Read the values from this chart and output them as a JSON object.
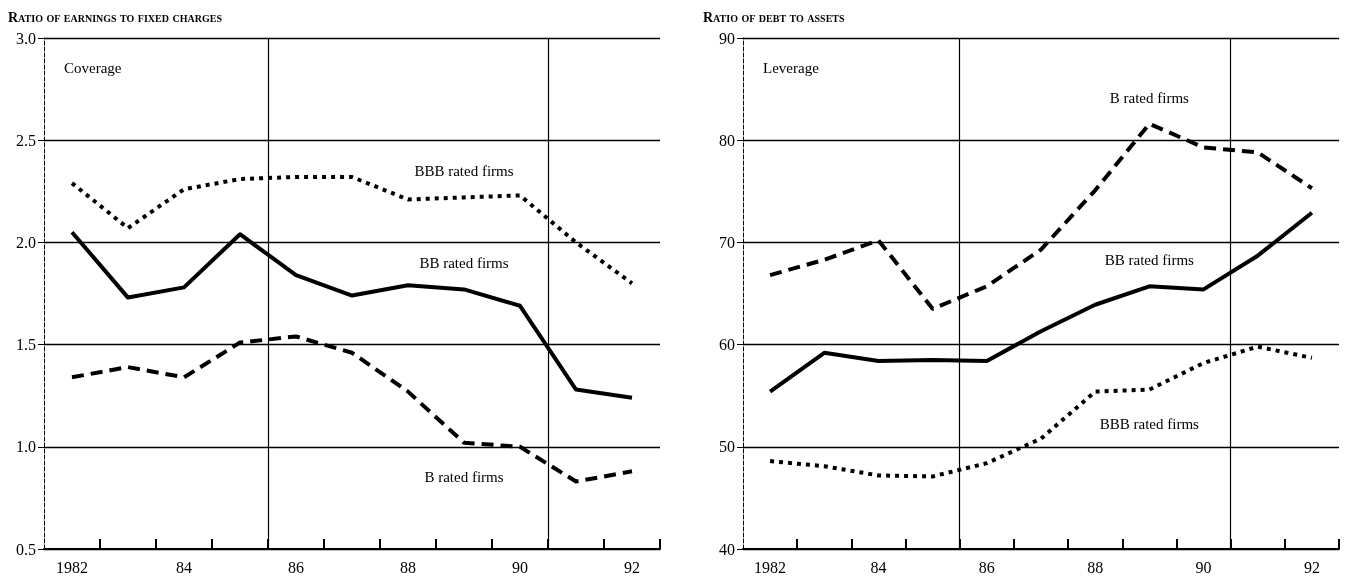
{
  "chart_data": [
    {
      "type": "line",
      "title": "Ratio of earnings to fixed charges",
      "x": [
        1982,
        1983,
        1984,
        1985,
        1986,
        1987,
        1988,
        1989,
        1990,
        1991,
        1992
      ],
      "series": [
        {
          "name": "BBB rated firms",
          "color": "#000000",
          "line_style": "dotted",
          "values": [
            2.29,
            2.07,
            2.26,
            2.31,
            2.32,
            2.32,
            2.21,
            2.22,
            2.23,
            2.0,
            1.8
          ]
        },
        {
          "name": "BB rated firms",
          "color": "#000000",
          "line_style": "solid",
          "values": [
            2.05,
            1.73,
            1.78,
            2.04,
            1.84,
            1.74,
            1.79,
            1.77,
            1.69,
            1.28,
            1.24
          ]
        },
        {
          "name": "B rated firms",
          "color": "#000000",
          "line_style": "dashed",
          "values": [
            1.34,
            1.39,
            1.34,
            1.51,
            1.54,
            1.46,
            1.27,
            1.02,
            1.0,
            0.83,
            0.88
          ]
        }
      ],
      "xlim": [
        1981.5,
        1992.5
      ],
      "xticks": [
        1982,
        {
          "value": 1982.5,
          "label": null
        },
        {
          "value": 1983.5,
          "label": null
        },
        {
          "value": 1984,
          "label": "84"
        },
        {
          "value": 1984.5,
          "label": null
        },
        {
          "value": 1985.5,
          "label": null
        },
        {
          "value": 1986,
          "label": "86"
        },
        {
          "value": 1986.5,
          "label": null
        },
        {
          "value": 1987.5,
          "label": null
        },
        {
          "value": 1988,
          "label": "88"
        },
        {
          "value": 1988.5,
          "label": null
        },
        {
          "value": 1989.5,
          "label": null
        },
        {
          "value": 1990,
          "label": "90"
        },
        {
          "value": 1990.5,
          "label": null
        },
        {
          "value": 1991.5,
          "label": null
        },
        {
          "value": 1992,
          "label": "92"
        },
        {
          "value": 1992.5,
          "label": null
        }
      ],
      "ylim": [
        0.5,
        3.0
      ],
      "yticks": [
        {
          "value": 0.5,
          "label": "0.5"
        },
        {
          "value": 1.0,
          "label": "1.0"
        },
        {
          "value": 1.5,
          "label": "1.5"
        },
        {
          "value": 2.0,
          "label": "2.0"
        },
        {
          "value": 2.5,
          "label": "2.5"
        },
        {
          "value": 3.0,
          "label": "3.0"
        }
      ],
      "grid": "y",
      "marker": "none",
      "ref_lines": [
        {
          "axis": "x",
          "value": 1985.5,
          "color": "#000000"
        },
        {
          "axis": "x",
          "value": 1990.5,
          "color": "#000000"
        }
      ],
      "annotations": [
        "Coverage"
      ]
    },
    {
      "type": "line",
      "title": "Ratio of debt to assets",
      "x": [
        1982,
        1983,
        1984,
        1985,
        1986,
        1987,
        1988,
        1989,
        1990,
        1991,
        1992
      ],
      "series": [
        {
          "name": "B rated firms",
          "color": "#000000",
          "line_style": "dashed",
          "values": [
            66.8,
            68.3,
            70.2,
            63.5,
            65.7,
            69.3,
            75.1,
            81.6,
            79.3,
            78.8,
            75.3
          ]
        },
        {
          "name": "BB rated firms",
          "color": "#000000",
          "line_style": "solid",
          "values": [
            55.4,
            59.2,
            58.4,
            58.5,
            58.4,
            61.3,
            63.9,
            65.7,
            65.4,
            68.7,
            72.9
          ]
        },
        {
          "name": "BBB rated firms",
          "color": "#000000",
          "line_style": "dotted",
          "values": [
            48.6,
            48.1,
            47.2,
            47.1,
            48.4,
            50.8,
            55.4,
            55.6,
            58.2,
            59.8,
            58.7
          ]
        }
      ],
      "xlim": [
        1981.5,
        1992.5
      ],
      "xticks": [
        1982,
        {
          "value": 1982.5,
          "label": null
        },
        {
          "value": 1983.5,
          "label": null
        },
        {
          "value": 1984,
          "label": "84"
        },
        {
          "value": 1984.5,
          "label": null
        },
        {
          "value": 1985.5,
          "label": null
        },
        {
          "value": 1986,
          "label": "86"
        },
        {
          "value": 1986.5,
          "label": null
        },
        {
          "value": 1987.5,
          "label": null
        },
        {
          "value": 1988,
          "label": "88"
        },
        {
          "value": 1988.5,
          "label": null
        },
        {
          "value": 1989.5,
          "label": null
        },
        {
          "value": 1990,
          "label": "90"
        },
        {
          "value": 1990.5,
          "label": null
        },
        {
          "value": 1991.5,
          "label": null
        },
        {
          "value": 1992,
          "label": "92"
        },
        {
          "value": 1992.5,
          "label": null
        }
      ],
      "ylim": [
        40,
        90
      ],
      "yticks": [
        40,
        50,
        60,
        70,
        80,
        90
      ],
      "grid": "y",
      "marker": "none",
      "ref_lines": [
        {
          "axis": "x",
          "value": 1985.5,
          "color": "#000000"
        },
        {
          "axis": "x",
          "value": 1990.5,
          "color": "#000000"
        }
      ],
      "annotations": [
        "Leverage"
      ]
    }
  ]
}
